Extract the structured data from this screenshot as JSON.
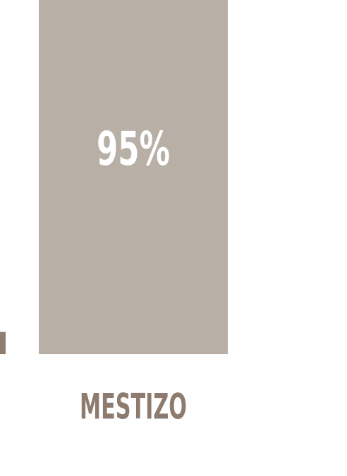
{
  "chart_data": {
    "type": "bar",
    "categories": [
      null,
      "MESTIZO"
    ],
    "values": [
      6,
      95
    ],
    "value_labels": [
      null,
      "95%"
    ],
    "colors": [
      "#8f7f72",
      "#b8afa6"
    ],
    "ylim": [
      0,
      95
    ]
  }
}
